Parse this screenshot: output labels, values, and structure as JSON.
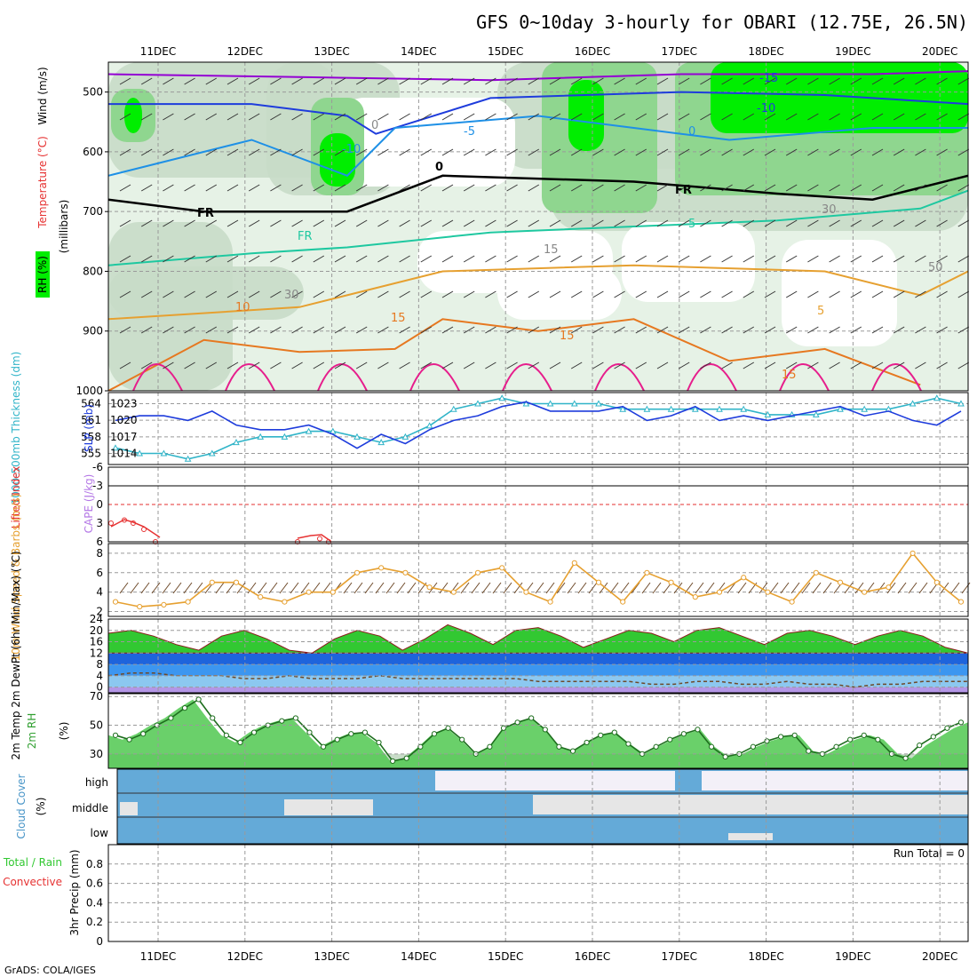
{
  "title": "GFS 0~10day 3-hourly for OBARI (12.75E, 26.5N)",
  "footer": "GrADS: COLA/IGES",
  "run_total_label": "Run Total = 0",
  "chart_data": [
    {
      "type": "heatmap",
      "id": "upper-air",
      "x_labels": [
        "11DEC",
        "12DEC",
        "13DEC",
        "14DEC",
        "15DEC",
        "16DEC",
        "17DEC",
        "18DEC",
        "19DEC",
        "20DEC"
      ],
      "ylabel_parts": [
        "RH (%)",
        "Temperature (°C)",
        "Wind (m/s)"
      ],
      "ylabel_units": "(millibars)",
      "y_ticks": [
        500,
        600,
        700,
        800,
        900,
        1000
      ],
      "ylim": [
        1000,
        450
      ],
      "colors": {
        "rh_30": "#e6f2e6",
        "rh_50": "#c8dcc8",
        "rh_70": "#8fd68f",
        "rh_90": "#00ee00"
      },
      "contour_labels": [
        "-15",
        "-10",
        "-10",
        "-5",
        "0",
        "0",
        "FR",
        "FR",
        "FR",
        "5",
        "5",
        "10",
        "15",
        "15",
        "15",
        "15",
        "30",
        "30",
        "50",
        "0"
      ],
      "isotherms": [
        {
          "label": "-15",
          "color": "#9400d3",
          "points": [
            [
              0,
              470
            ],
            [
              20,
              475
            ],
            [
              40,
              480
            ],
            [
              60,
              470
            ],
            [
              80,
              470
            ],
            [
              90,
              465
            ]
          ]
        },
        {
          "label": "-10",
          "color": "#1e3cdc",
          "points": [
            [
              0,
              520
            ],
            [
              15,
              520
            ],
            [
              25,
              540
            ],
            [
              28,
              570
            ],
            [
              40,
              510
            ],
            [
              60,
              500
            ],
            [
              75,
              505
            ],
            [
              90,
              520
            ]
          ]
        },
        {
          "label": "-5",
          "color": "#1e90e6",
          "points": [
            [
              0,
              640
            ],
            [
              15,
              580
            ],
            [
              25,
              640
            ],
            [
              30,
              560
            ],
            [
              45,
              540
            ],
            [
              55,
              560
            ],
            [
              65,
              580
            ],
            [
              80,
              560
            ],
            [
              90,
              560
            ]
          ]
        },
        {
          "label": "FR",
          "color": "#000000",
          "points": [
            [
              0,
              680
            ],
            [
              10,
              700
            ],
            [
              25,
              700
            ],
            [
              35,
              640
            ],
            [
              55,
              650
            ],
            [
              70,
              670
            ],
            [
              80,
              680
            ],
            [
              90,
              640
            ]
          ]
        },
        {
          "label": "5",
          "color": "#1ec8a0",
          "points": [
            [
              0,
              790
            ],
            [
              15,
              770
            ],
            [
              25,
              760
            ],
            [
              40,
              735
            ],
            [
              55,
              725
            ],
            [
              70,
              715
            ],
            [
              85,
              695
            ],
            [
              90,
              665
            ]
          ]
        },
        {
          "label": "10",
          "color": "#e6a030",
          "points": [
            [
              0,
              880
            ],
            [
              20,
              860
            ],
            [
              35,
              800
            ],
            [
              55,
              790
            ],
            [
              75,
              800
            ],
            [
              85,
              840
            ],
            [
              90,
              800
            ]
          ]
        },
        {
          "label": "15",
          "color": "#e67820",
          "points": [
            [
              0,
              1000
            ],
            [
              10,
              915
            ],
            [
              20,
              935
            ],
            [
              30,
              930
            ],
            [
              35,
              880
            ],
            [
              45,
              900
            ],
            [
              55,
              880
            ],
            [
              65,
              950
            ],
            [
              75,
              930
            ],
            [
              85,
              990
            ]
          ]
        }
      ]
    },
    {
      "type": "line",
      "id": "thickness-slp",
      "ylabel_left": "1000-500mb Thickness (dm)",
      "ylabel_right": "SLP (mb)",
      "left_ticks": [
        555,
        558,
        561,
        564
      ],
      "right_ticks": [
        1014,
        1017,
        1020,
        1023
      ],
      "ylim_left": [
        553,
        566
      ],
      "series": [
        {
          "name": "Thickness",
          "color": "#30b4c8",
          "marker": "triangle",
          "values": [
            556,
            555,
            555,
            554,
            555,
            557,
            558,
            558,
            559,
            559,
            558,
            557,
            558,
            560,
            563,
            564,
            565,
            564,
            564,
            564,
            564,
            563,
            563,
            563,
            563,
            563,
            563,
            562,
            562,
            562,
            563,
            563,
            563,
            564,
            565,
            564
          ]
        },
        {
          "name": "SLP",
          "color": "#1e3cdc",
          "values": [
            1020,
            1021,
            1021,
            1020,
            1022,
            1019,
            1018,
            1018,
            1019,
            1017,
            1014,
            1017,
            1015,
            1018,
            1020,
            1021,
            1023,
            1024,
            1022,
            1022,
            1022,
            1023,
            1020,
            1021,
            1023,
            1020,
            1021,
            1020,
            1021,
            1022,
            1023,
            1021,
            1022,
            1020,
            1019,
            1022
          ]
        }
      ]
    },
    {
      "type": "line",
      "id": "lifted-index",
      "ylabel_left": "Lifted Index",
      "ylabel_right": "CAPE (J/kg)",
      "y_ticks": [
        "-6",
        "-3",
        "0",
        "3",
        "6"
      ],
      "ylim": [
        -6,
        6
      ],
      "series": [
        {
          "name": "Lifted Index",
          "color": "#e63232",
          "values": [
            3,
            2.5,
            3,
            4,
            6,
            null,
            null,
            null,
            null,
            6,
            5.5,
            6
          ]
        }
      ]
    },
    {
      "type": "line",
      "id": "wind-10m",
      "ylabel": "10m Wind Speed & Barbs (m/s)",
      "y_ticks": [
        2,
        4,
        6,
        8
      ],
      "ylim": [
        1.5,
        9
      ],
      "series": [
        {
          "name": "Speed",
          "color": "#e6a030",
          "marker": "circle",
          "values": [
            3,
            2.5,
            2.7,
            3,
            5,
            5,
            3.5,
            3,
            4,
            4,
            6,
            6.5,
            6,
            4.5,
            4,
            6,
            6.5,
            4,
            3,
            7,
            5,
            3,
            6,
            5,
            3.5,
            4,
            5.5,
            4,
            3,
            6,
            5,
            4,
            4.5,
            8,
            5,
            3
          ]
        }
      ]
    },
    {
      "type": "area",
      "id": "temp-2m",
      "ylabel": "2m Temp 2m DewPt (6hr Min/Max) (°C)",
      "y_ticks": [
        0,
        4,
        8,
        12,
        16,
        20,
        24
      ],
      "ylim": [
        -2,
        24
      ],
      "colors": {
        "temp": "#32c832",
        "dew_band_1": "#1e64dc",
        "dew_band_2": "#3c96f0",
        "dew_band_3": "#8cc8f0",
        "cold": "#b496e6"
      },
      "series": [
        {
          "name": "Temperature",
          "values": [
            19,
            20,
            18,
            15,
            13,
            18,
            20,
            17,
            13,
            12,
            17,
            20,
            18,
            13,
            17,
            22,
            19,
            15,
            20,
            21,
            18,
            14,
            17,
            20,
            19,
            16,
            20,
            21,
            18,
            15,
            19,
            20,
            18,
            15,
            18,
            20,
            18,
            14,
            12
          ]
        },
        {
          "name": "Dew point",
          "values": [
            4,
            5,
            5,
            4,
            4,
            4,
            3,
            3,
            4,
            3,
            3,
            3,
            4,
            3,
            3,
            3,
            3,
            3,
            3,
            2,
            2,
            2,
            2,
            2,
            1,
            1,
            2,
            2,
            1,
            1,
            2,
            1,
            1,
            0,
            1,
            1,
            2,
            2,
            2
          ]
        }
      ]
    },
    {
      "type": "area",
      "id": "rh-2m",
      "ylabel": "2m RH (%)",
      "y_ticks": [
        30,
        50,
        70
      ],
      "ylim": [
        20,
        72
      ],
      "series": [
        {
          "name": "RH",
          "color": "#32c832",
          "values": [
            43,
            40,
            44,
            50,
            55,
            62,
            68,
            55,
            43,
            38,
            45,
            50,
            53,
            55,
            45,
            35,
            40,
            44,
            45,
            38,
            25,
            27,
            35,
            44,
            48,
            40,
            30,
            35,
            48,
            52,
            55,
            47,
            35,
            32,
            38,
            43,
            45,
            37,
            30,
            35,
            40,
            44,
            47,
            35,
            28,
            30,
            35,
            39,
            42,
            43,
            32,
            30,
            35,
            40,
            43,
            40,
            30,
            27,
            36,
            42,
            48,
            52
          ]
        }
      ]
    },
    {
      "type": "heatmap",
      "id": "cloud-cover",
      "ylabel": "Cloud Cover (%)",
      "row_labels": [
        "high",
        "middle",
        "low"
      ],
      "colors": {
        "cloud": "#64aad8",
        "clear": "#f3f0f8",
        "mid_gap": "#e6e6e6"
      }
    },
    {
      "type": "bar",
      "id": "precip",
      "ylabel_parts": [
        "Total / Rain",
        "Convective",
        "3hr Precip (mm)"
      ],
      "y_ticks": [
        "0",
        "0.2",
        "0.4",
        "0.6",
        "0.8"
      ],
      "ylim": [
        0,
        1
      ],
      "values": []
    }
  ]
}
